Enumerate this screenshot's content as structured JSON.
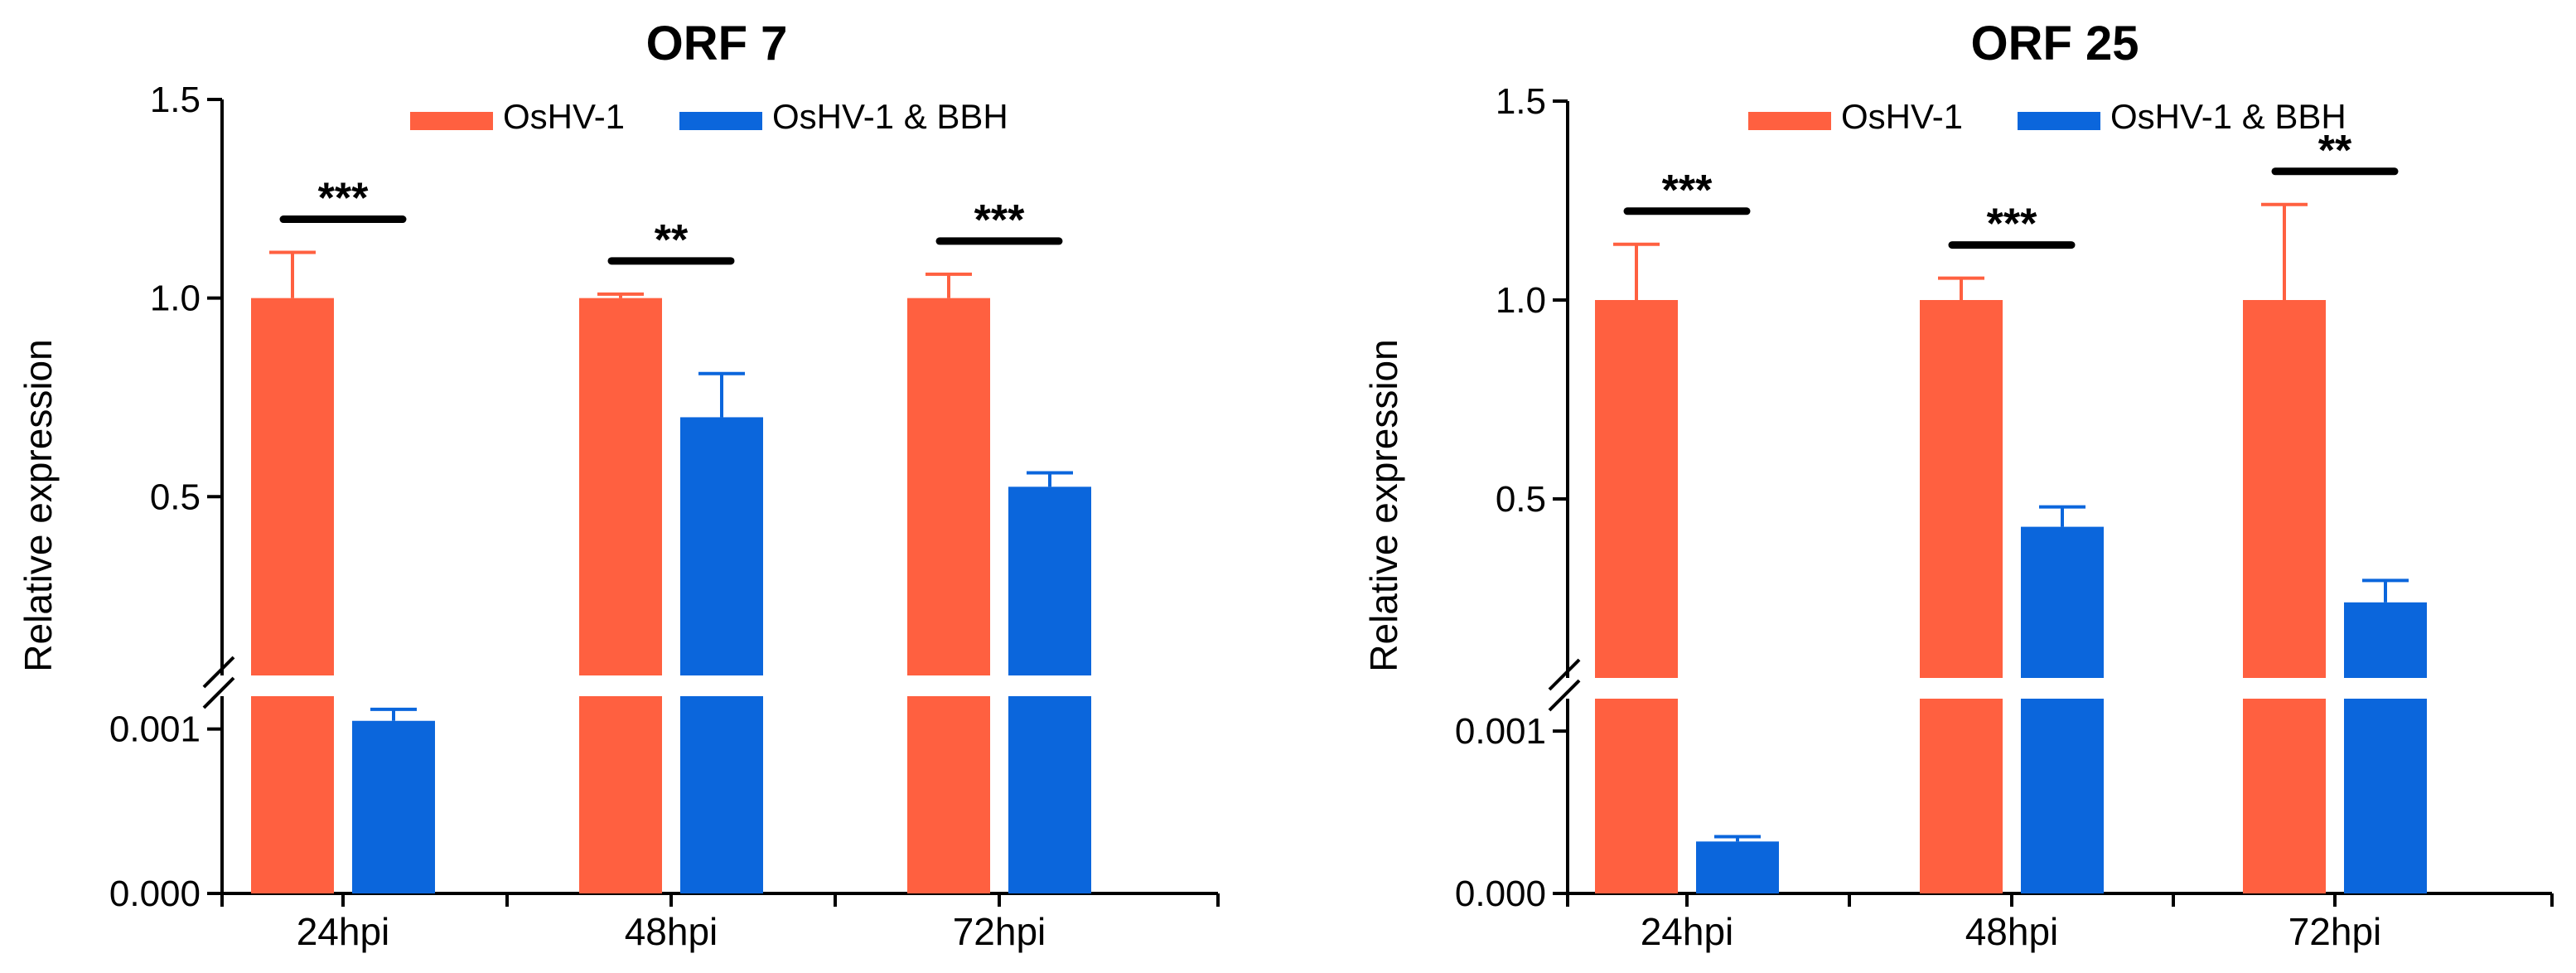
{
  "chart_data": [
    {
      "type": "bar",
      "title": "ORF 7",
      "ylabel": "Relative expression",
      "xlabel": "",
      "categories": [
        "24hpi",
        "48hpi",
        "72hpi"
      ],
      "series": [
        {
          "name": "OsHV-1",
          "color": "#ff6040",
          "values": [
            1.0,
            1.0,
            1.0
          ],
          "errors": [
            0.115,
            0.01,
            0.06
          ]
        },
        {
          "name": "OsHV-1 & BBH",
          "color": "#0b66dc",
          "values": [
            0.00105,
            0.7,
            0.525
          ],
          "errors": [
            7e-05,
            0.11,
            0.035
          ]
        }
      ],
      "axis_break": true,
      "lower_segment": {
        "ylim": [
          0,
          0.0012
        ],
        "ticks": [
          0.0,
          0.001
        ],
        "tick_labels": [
          "0.000",
          "0.001"
        ]
      },
      "upper_segment": {
        "ylim": [
          0.05,
          1.5
        ],
        "ticks": [
          0.5,
          1.0,
          1.5
        ],
        "tick_labels": [
          "0.5",
          "1.0",
          "1.5"
        ]
      },
      "significance": [
        "***",
        "**",
        "***"
      ],
      "legend": {
        "position": "top-center",
        "entries": [
          "OsHV-1",
          "OsHV-1 & BBH"
        ]
      }
    },
    {
      "type": "bar",
      "title": "ORF 25",
      "ylabel": "Relative expression",
      "xlabel": "",
      "categories": [
        "24hpi",
        "48hpi",
        "72hpi"
      ],
      "series": [
        {
          "name": "OsHV-1",
          "color": "#ff6040",
          "values": [
            1.0,
            1.0,
            1.0
          ],
          "errors": [
            0.14,
            0.055,
            0.24
          ]
        },
        {
          "name": "OsHV-1 & BBH",
          "color": "#0b66dc",
          "values": [
            0.00032,
            0.43,
            0.24
          ],
          "errors": [
            3e-05,
            0.05,
            0.055
          ]
        }
      ],
      "axis_break": true,
      "lower_segment": {
        "ylim": [
          0,
          0.0012
        ],
        "ticks": [
          0.0,
          0.001
        ],
        "tick_labels": [
          "0.000",
          "0.001"
        ]
      },
      "upper_segment": {
        "ylim": [
          0.05,
          1.5
        ],
        "ticks": [
          0.5,
          1.0,
          1.5
        ],
        "tick_labels": [
          "0.5",
          "1.0",
          "1.5"
        ]
      },
      "significance": [
        "***",
        "***",
        "**"
      ],
      "legend": {
        "position": "top-center",
        "entries": [
          "OsHV-1",
          "OsHV-1 & BBH"
        ]
      }
    }
  ]
}
